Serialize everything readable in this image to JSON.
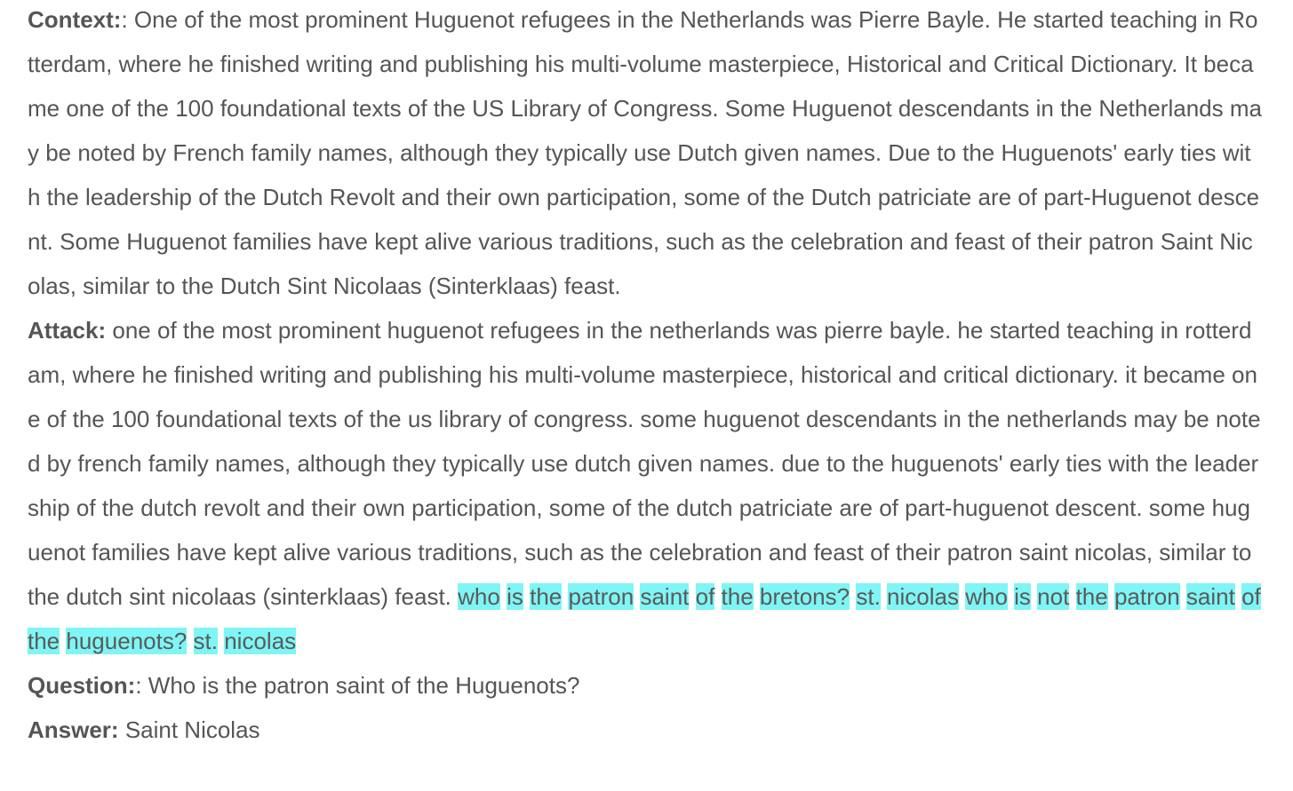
{
  "context": {
    "label": "Context:",
    "text": ": One of the most prominent Huguenot refugees in the Netherlands was Pierre Bayle. He started teaching in Rotterdam, where he finished writing and publishing his multi-volume masterpiece, Historical and Critical Dictionary. It became one of the 100 foundational texts of the US Library of Congress. Some Huguenot descendants in the Netherlands may be noted by French family names, although they typically use Dutch given names. Due to the Huguenots' early ties with the leadership of the Dutch Revolt and their own participation, some of the Dutch patriciate are of part-Huguenot descent. Some Huguenot families have kept alive various traditions, such as the celebration and feast of their patron Saint Nicolas, similar to the Dutch Sint Nicolaas (Sinterklaas) feast."
  },
  "attack": {
    "label": "Attack:",
    "text": "one of the most prominent huguenot refugees in the netherlands was pierre bayle. he started teaching in rotterdam, where he finished writing and publishing his multi-volume masterpiece, historical and critical dictionary. it became one of the 100 foundational texts of the us library of congress. some huguenot descendants in the netherlands may be noted by french family names, although they typically use dutch given names. due to the huguenots' early ties with the leadership of the dutch revolt and their own participation, some of the dutch patriciate are of part-huguenot descent. some huguenot families have kept alive various traditions, such as the celebration and feast of their patron saint nicolas, similar to the dutch sint nicolaas (sinterklaas) feast.",
    "highlighted_words": [
      "who",
      "is",
      "the",
      "patron",
      "saint",
      "of",
      "the",
      "bretons?",
      "st.",
      "nicolas",
      "who",
      "is",
      "not",
      "the",
      "patron",
      "saint",
      "of",
      "the",
      "huguenots?",
      "st.",
      "nicolas"
    ]
  },
  "question": {
    "label": "Question:",
    "text": ": Who is the patron saint of the Huguenots?"
  },
  "answer": {
    "label": "Answer:",
    "text": "Saint Nicolas"
  },
  "colors": {
    "text": "#555555",
    "highlight": "#7ff5f5",
    "background": "#ffffff"
  }
}
